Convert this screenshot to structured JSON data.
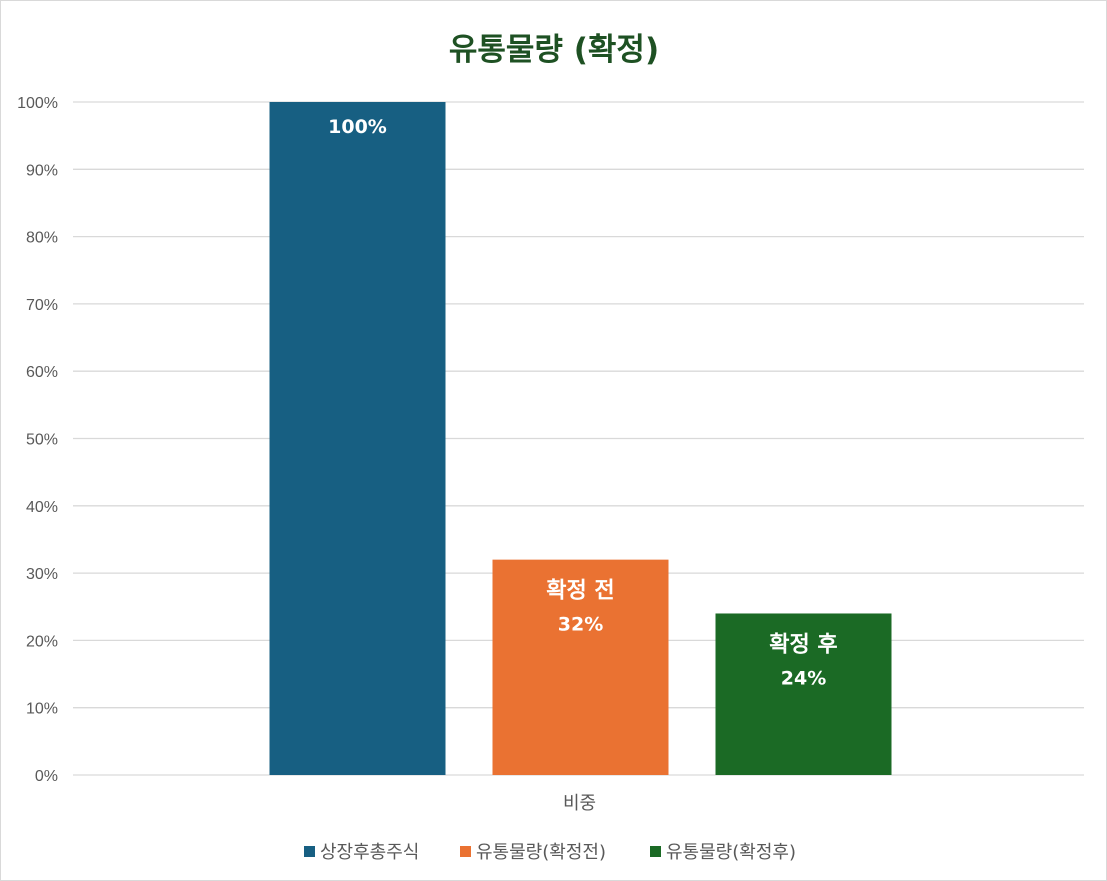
{
  "colors": {
    "series_1": "#175f82",
    "series_2": "#ea7232",
    "series_3": "#1b6a25",
    "title": "#1e5123",
    "grid": "#d9d9d9",
    "axis_text": "#595959",
    "bar_label": "#ffffff"
  },
  "chart_data": {
    "type": "bar",
    "title": "유통물량 (확정)",
    "categories": [
      "비중"
    ],
    "ylim": [
      0,
      100
    ],
    "yticks": [
      "0%",
      "10%",
      "20%",
      "30%",
      "40%",
      "50%",
      "60%",
      "70%",
      "80%",
      "90%",
      "100%"
    ],
    "grid": true,
    "legend_position": "bottom",
    "series": [
      {
        "name": "상장후총주식",
        "values": [
          100
        ],
        "data_label": "",
        "value_label": "100%"
      },
      {
        "name": "유통물량(확정전)",
        "values": [
          32
        ],
        "data_label": "확정 전",
        "value_label": "32%"
      },
      {
        "name": "유통물량(확정후)",
        "values": [
          24
        ],
        "data_label": "확정 후",
        "value_label": "24%"
      }
    ]
  }
}
